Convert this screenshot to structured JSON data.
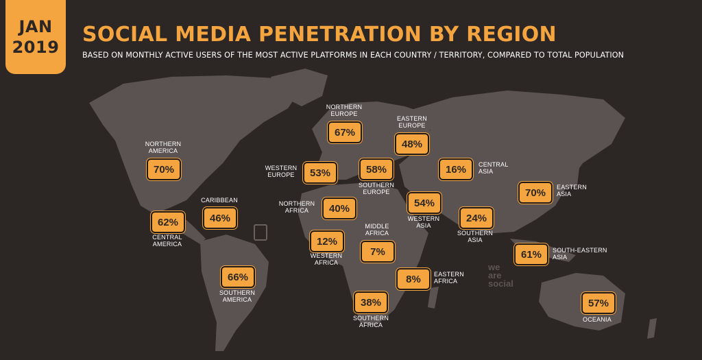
{
  "header": {
    "date_month": "JAN",
    "date_year": "2019",
    "title": "SOCIAL MEDIA PENETRATION BY REGION",
    "subtitle": "BASED ON MONTHLY ACTIVE USERS OF THE MOST ACTIVE PLATFORMS IN EACH COUNTRY / TERRITORY, COMPARED TO TOTAL POPULATION"
  },
  "colors": {
    "background": "#2c2624",
    "land": "#5b5351",
    "accent": "#f5a540",
    "text": "#ffffff"
  },
  "watermark": "we\nare\nsocial",
  "regions": [
    {
      "name": "NORTHERN\nAMERICA",
      "value": "70%"
    },
    {
      "name": "CENTRAL\nAMERICA",
      "value": "62%"
    },
    {
      "name": "CARIBBEAN",
      "value": "46%"
    },
    {
      "name": "SOUTHERN\nAMERICA",
      "value": "66%"
    },
    {
      "name": "NORTHERN\nEUROPE",
      "value": "67%"
    },
    {
      "name": "WESTERN\nEUROPE",
      "value": "53%"
    },
    {
      "name": "SOUTHERN\nEUROPE",
      "value": "58%"
    },
    {
      "name": "EASTERN\nEUROPE",
      "value": "48%"
    },
    {
      "name": "NORTHERN\nAFRICA",
      "value": "40%"
    },
    {
      "name": "WESTERN\nAFRICA",
      "value": "12%"
    },
    {
      "name": "MIDDLE\nAFRICA",
      "value": "7%"
    },
    {
      "name": "EASTERN\nAFRICA",
      "value": "8%"
    },
    {
      "name": "SOUTHERN\nAFRICA",
      "value": "38%"
    },
    {
      "name": "WESTERN\nASIA",
      "value": "54%"
    },
    {
      "name": "CENTRAL\nASIA",
      "value": "16%"
    },
    {
      "name": "SOUTHERN\nASIA",
      "value": "24%"
    },
    {
      "name": "EASTERN\nASIA",
      "value": "70%"
    },
    {
      "name": "SOUTH-EASTERN\nASIA",
      "value": "61%"
    },
    {
      "name": "OCEANIA",
      "value": "57%"
    }
  ]
}
